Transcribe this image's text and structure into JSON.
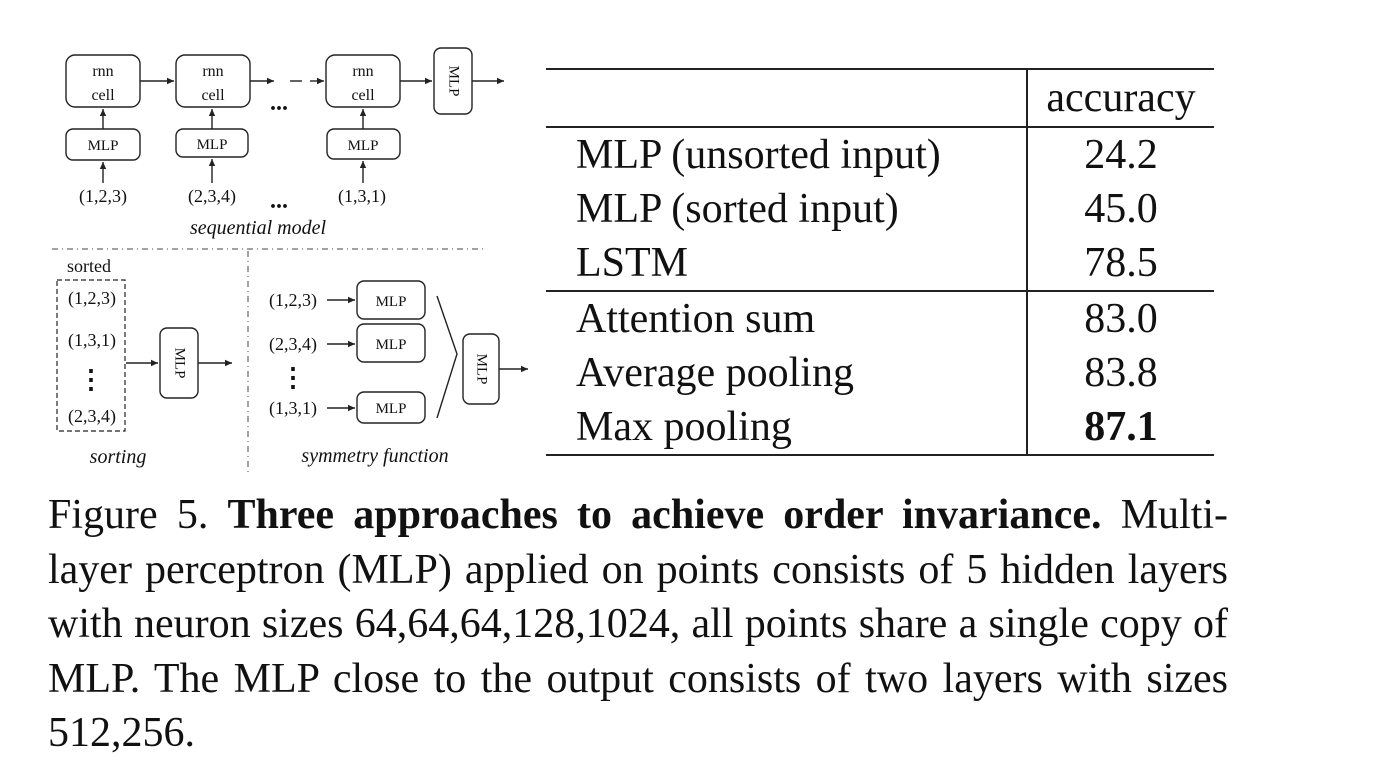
{
  "figure": {
    "sequential_model": {
      "rnn_cell_label_line1": "rnn",
      "rnn_cell_label_line2": "cell",
      "mlp_label": "MLP",
      "inputs": [
        "(1,2,3)",
        "(2,3,4)",
        "(1,3,1)"
      ],
      "ellipsis": "...",
      "title": "sequential model"
    },
    "sorting": {
      "sorted_label": "sorted",
      "inputs": [
        "(1,2,3)",
        "(1,3,1)",
        "(2,3,4)"
      ],
      "vertical_ellipsis": "⋮",
      "mlp_label": "MLP",
      "title": "sorting"
    },
    "symmetry_function": {
      "inputs": [
        "(1,2,3)",
        "(2,3,4)",
        "(1,3,1)"
      ],
      "mlp_label": "MLP",
      "vertical_ellipsis": "⋮",
      "title": "symmetry function"
    }
  },
  "table": {
    "header": {
      "method": "",
      "accuracy": "accuracy"
    },
    "groups": [
      [
        {
          "method": "MLP (unsorted input)",
          "accuracy": "24.2"
        },
        {
          "method": "MLP (sorted input)",
          "accuracy": "45.0"
        },
        {
          "method": "LSTM",
          "accuracy": "78.5"
        }
      ],
      [
        {
          "method": "Attention sum",
          "accuracy": "83.0"
        },
        {
          "method": "Average pooling",
          "accuracy": "83.8"
        },
        {
          "method": "Max pooling",
          "accuracy": "87.1",
          "best": true
        }
      ]
    ]
  },
  "caption": {
    "label": "Figure 5.",
    "title": "Three approaches to achieve order invariance.",
    "text": "Multi-layer perceptron (MLP) applied on points consists of 5 hidden layers with neuron sizes 64,64,64,128,1024, all points share a single copy of MLP. The MLP close to the output consists of two layers with sizes 512,256."
  }
}
